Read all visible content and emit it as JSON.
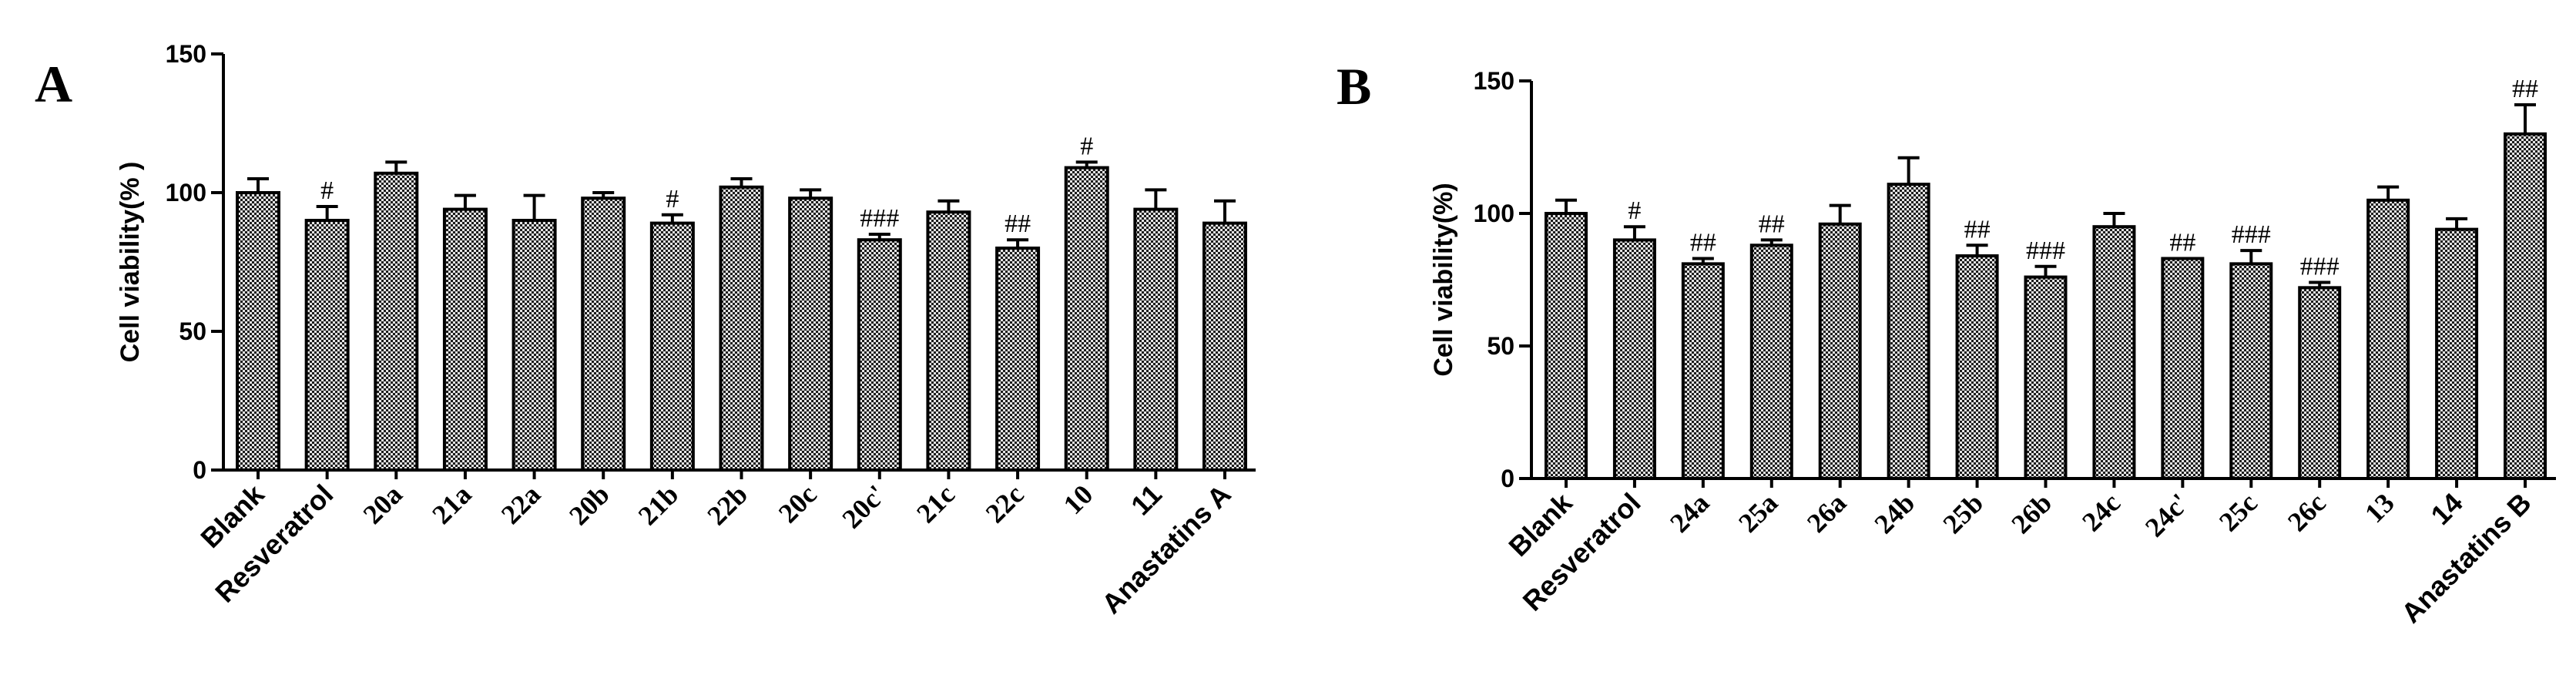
{
  "chart_data": [
    {
      "type": "bar",
      "panel_label": "A",
      "ylabel": "Cell viability(% )",
      "ylim": [
        0,
        150
      ],
      "yticks": [
        "0",
        "50",
        "100",
        "150"
      ],
      "grid": false,
      "bar_fill": "crosshatch",
      "categories": [
        "Blank",
        "Resveratrol",
        "20a",
        "21a",
        "22a",
        "20b",
        "21b",
        "22b",
        "20c",
        "20c'",
        "21c",
        "22c",
        "10",
        "11",
        "Anastatins A"
      ],
      "values": [
        100,
        90,
        107,
        94,
        90,
        98,
        89,
        102,
        98,
        83,
        93,
        80,
        109,
        94,
        89
      ],
      "errors": [
        5,
        5,
        4,
        5,
        9,
        2,
        3,
        3,
        3,
        2,
        4,
        3,
        2,
        7,
        8
      ],
      "significance": [
        "",
        "#",
        "",
        "",
        "",
        "",
        "#",
        "",
        "",
        "###",
        "",
        "##",
        "#",
        "",
        ""
      ]
    },
    {
      "type": "bar",
      "panel_label": "B",
      "ylabel": "Cell viability(%)",
      "ylim": [
        0,
        150
      ],
      "yticks": [
        "0",
        "50",
        "100",
        "150"
      ],
      "grid": false,
      "bar_fill": "crosshatch",
      "categories": [
        "Blank",
        "Resveratrol",
        "24a",
        "25a",
        "26a",
        "24b",
        "25b",
        "26b",
        "24c",
        "24c'",
        "25c",
        "26c",
        "13",
        "14",
        "Anastatins B"
      ],
      "values": [
        100,
        90,
        81,
        88,
        96,
        111,
        84,
        76,
        95,
        83,
        81,
        72,
        105,
        94,
        130
      ],
      "errors": [
        5,
        5,
        2,
        2,
        7,
        10,
        4,
        4,
        5,
        0,
        5,
        2,
        5,
        4,
        11
      ],
      "significance": [
        "",
        "#",
        "##",
        "##",
        "",
        "",
        "##",
        "###",
        "",
        "##",
        "###",
        "###",
        "",
        "",
        "##"
      ]
    }
  ]
}
